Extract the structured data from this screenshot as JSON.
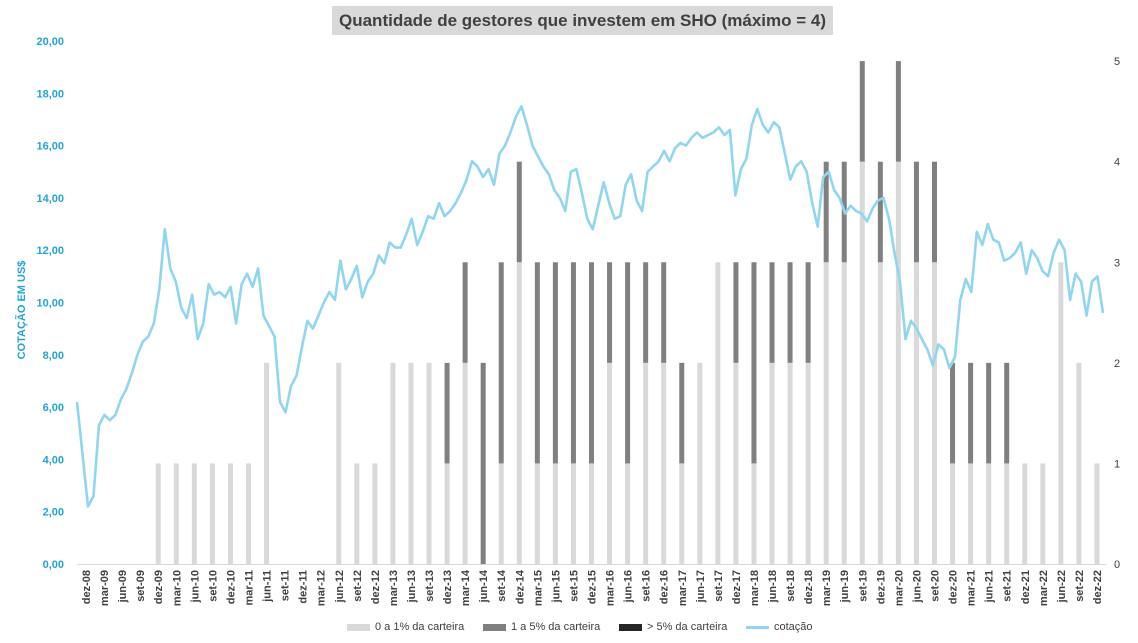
{
  "chart_data": {
    "type": "bar+line",
    "title": "Quantidade de gestores que investem em SHO (máximo = 4)",
    "ylabel_left": "COTAÇÃO EM US$",
    "ylim_left": [
      0,
      20
    ],
    "yticks_left": [
      "0,00",
      "2,00",
      "4,00",
      "6,00",
      "8,00",
      "10,00",
      "12,00",
      "14,00",
      "16,00",
      "18,00",
      "20,00"
    ],
    "ylim_right": [
      0,
      5.2
    ],
    "yticks_right": [
      "0",
      "1",
      "2",
      "3",
      "4",
      "5"
    ],
    "x_tick_labels": [
      "dez-08",
      "mar-09",
      "jun-09",
      "set-09",
      "dez-09",
      "mar-10",
      "jun-10",
      "set-10",
      "dez-10",
      "mar-11",
      "jun-11",
      "set-11",
      "dez-11",
      "mar-12",
      "jun-12",
      "set-12",
      "dez-12",
      "mar-13",
      "jun-13",
      "set-13",
      "dez-13",
      "mar-14",
      "jun-14",
      "set-14",
      "dez-14",
      "mar-15",
      "jun-15",
      "set-15",
      "dez-15",
      "mar-16",
      "jun-16",
      "set-16",
      "dez-16",
      "mar-17",
      "jun-17",
      "set-17",
      "dez-17",
      "mar-18",
      "jun-18",
      "set-18",
      "dez-18",
      "mar-19",
      "jun-19",
      "set-19",
      "dez-19",
      "mar-20",
      "jun-20",
      "set-20",
      "dez-20",
      "mar-21",
      "jun-21",
      "set-21",
      "dez-21",
      "mar-22",
      "jun-22",
      "set-22",
      "dez-22"
    ],
    "stacked_bar_series": [
      {
        "name": "0 a 1% da carteira",
        "color": "#d9d9d9",
        "values": [
          0,
          0,
          0,
          0,
          1,
          1,
          1,
          1,
          1,
          1,
          2,
          0,
          0,
          0,
          2,
          1,
          1,
          2,
          2,
          2,
          1,
          2,
          0,
          1,
          3,
          1,
          1,
          1,
          1,
          2,
          1,
          2,
          2,
          1,
          2,
          3,
          2,
          1,
          2,
          2,
          2,
          3,
          3,
          4,
          3,
          4,
          3,
          3,
          1,
          1,
          1,
          1,
          1,
          1,
          3,
          2,
          1
        ]
      },
      {
        "name": "1 a 5% da carteira",
        "color": "#808080",
        "values": [
          0,
          0,
          0,
          0,
          0,
          0,
          0,
          0,
          0,
          0,
          0,
          0,
          0,
          0,
          0,
          0,
          0,
          0,
          0,
          0,
          1,
          1,
          2,
          2,
          1,
          2,
          2,
          2,
          2,
          1,
          2,
          1,
          1,
          1,
          0,
          0,
          1,
          2,
          1,
          1,
          1,
          1,
          1,
          1,
          1,
          1,
          1,
          1,
          1,
          1,
          1,
          1,
          0,
          0,
          0,
          0,
          0
        ]
      },
      {
        "name": "> 5% da carteira",
        "color": "#262626",
        "values": [
          0,
          0,
          0,
          0,
          0,
          0,
          0,
          0,
          0,
          0,
          0,
          0,
          0,
          0,
          0,
          0,
          0,
          0,
          0,
          0,
          0,
          0,
          0,
          0,
          0,
          0,
          0,
          0,
          0,
          0,
          0,
          0,
          0,
          0,
          0,
          0,
          0,
          0,
          0,
          0,
          0,
          0,
          0,
          0,
          0,
          0,
          0,
          0,
          0,
          0,
          0,
          0,
          0,
          0,
          0,
          0,
          0
        ]
      }
    ],
    "line_series": {
      "name": "cotação",
      "color": "#8fd6f0",
      "values": [
        6.2,
        4.2,
        2.2,
        2.6,
        5.3,
        5.7,
        5.5,
        5.7,
        6.3,
        6.7,
        7.3,
        8.0,
        8.5,
        8.7,
        9.2,
        10.5,
        12.8,
        11.3,
        10.8,
        9.8,
        9.4,
        10.3,
        8.6,
        9.2,
        10.7,
        10.3,
        10.4,
        10.2,
        10.6,
        9.2,
        10.7,
        11.1,
        10.6,
        11.3,
        9.5,
        9.1,
        8.7,
        6.2,
        5.8,
        6.8,
        7.2,
        8.3,
        9.3,
        9.0,
        9.5,
        10.0,
        10.4,
        10.1,
        11.6,
        10.5,
        10.9,
        11.4,
        10.2,
        10.8,
        11.1,
        11.8,
        11.5,
        12.3,
        12.1,
        12.1,
        12.6,
        13.2,
        12.2,
        12.7,
        13.3,
        13.2,
        13.8,
        13.3,
        13.5,
        13.8,
        14.2,
        14.7,
        15.4,
        15.2,
        14.8,
        15.1,
        14.5,
        15.7,
        16.0,
        16.5,
        17.1,
        17.5,
        16.8,
        16.0,
        15.6,
        15.2,
        14.9,
        14.3,
        14.0,
        13.5,
        15.0,
        15.1,
        14.2,
        13.2,
        12.8,
        13.7,
        14.6,
        13.8,
        13.2,
        13.3,
        14.5,
        14.9,
        13.9,
        13.5,
        15.0,
        15.2,
        15.4,
        15.8,
        15.4,
        15.9,
        16.1,
        16.0,
        16.3,
        16.5,
        16.3,
        16.4,
        16.5,
        16.7,
        16.4,
        16.6,
        14.1,
        15.1,
        15.5,
        16.8,
        17.4,
        16.8,
        16.5,
        16.9,
        16.7,
        15.7,
        14.7,
        15.2,
        15.4,
        15.0,
        13.8,
        12.9,
        14.8,
        15.0,
        14.3,
        14.0,
        13.4,
        13.7,
        13.5,
        13.4,
        13.1,
        13.6,
        13.9,
        14.0,
        13.2,
        11.9,
        10.8,
        8.6,
        9.3,
        9.0,
        8.6,
        8.2,
        7.6,
        8.4,
        8.2,
        7.5,
        7.9,
        10.1,
        10.9,
        10.4,
        12.7,
        12.2,
        13.0,
        12.4,
        12.3,
        11.6,
        11.7,
        11.9,
        12.3,
        11.1,
        12.0,
        11.7,
        11.2,
        11.0,
        11.9,
        12.4,
        12.0,
        10.1,
        11.1,
        10.8,
        9.5,
        10.8,
        11.0,
        9.6
      ]
    }
  }
}
